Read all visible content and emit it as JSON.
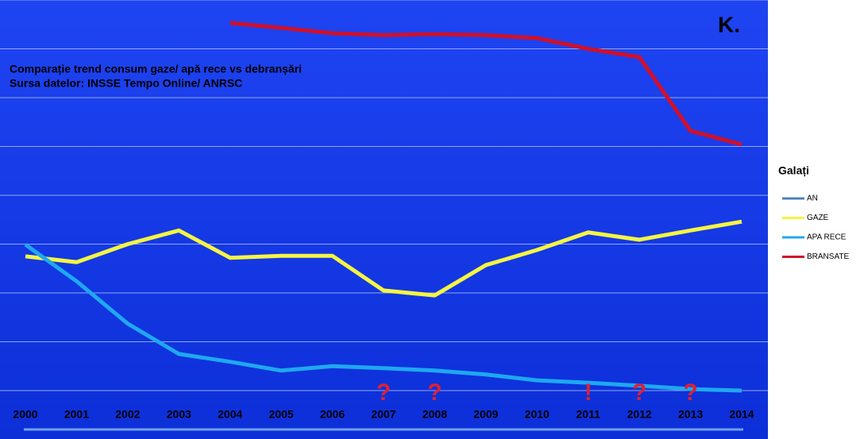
{
  "chart_data": {
    "type": "line",
    "corner_label": "K.",
    "title": "Comparație trend consum gaze/ apă rece vs debranșări",
    "subtitle": "Sursa datelor: INSSE Tempo Online/ ANRSC",
    "legend_title": "Galați",
    "legend": "right",
    "categories": [
      "2000",
      "2001",
      "2002",
      "2003",
      "2004",
      "2005",
      "2006",
      "2007",
      "2008",
      "2009",
      "2010",
      "2011",
      "2012",
      "2013",
      "2014"
    ],
    "series": [
      {
        "name": "AN",
        "color": "#4f81bd"
      },
      {
        "name": "GAZE",
        "color": "#f5f542",
        "values": [
          2.75,
          2.63,
          3.0,
          3.28,
          2.72,
          2.76,
          2.76,
          2.05,
          1.95,
          2.57,
          2.88,
          3.24,
          3.09,
          3.28,
          3.46
        ]
      },
      {
        "name": "APA RECE",
        "color": "#1ea8f0",
        "values": [
          2.99,
          2.24,
          1.37,
          0.75,
          0.59,
          0.41,
          0.5,
          0.46,
          0.41,
          0.33,
          0.21,
          0.16,
          0.1,
          0.03,
          0
        ]
      },
      {
        "name": "BRANSATE",
        "color": "#d0102a",
        "values": [
          null,
          null,
          null,
          null,
          7.53,
          7.43,
          7.32,
          7.28,
          7.3,
          7.28,
          7.22,
          7.0,
          6.83,
          5.32,
          5.04
        ]
      }
    ],
    "ylim": [
      0,
      8
    ],
    "gridlines": [
      0,
      1,
      2,
      3,
      4,
      5,
      6,
      7,
      8
    ],
    "markers": [
      {
        "text": "?",
        "x": "2007",
        "color": "#e02030"
      },
      {
        "text": "?",
        "x": "2008",
        "color": "#e02030"
      },
      {
        "text": "!",
        "x": "2011",
        "color": "#e02030"
      },
      {
        "text": "?",
        "x": "2012",
        "color": "#e02030"
      },
      {
        "text": "?",
        "x": "2013",
        "color": "#e02030"
      }
    ]
  }
}
